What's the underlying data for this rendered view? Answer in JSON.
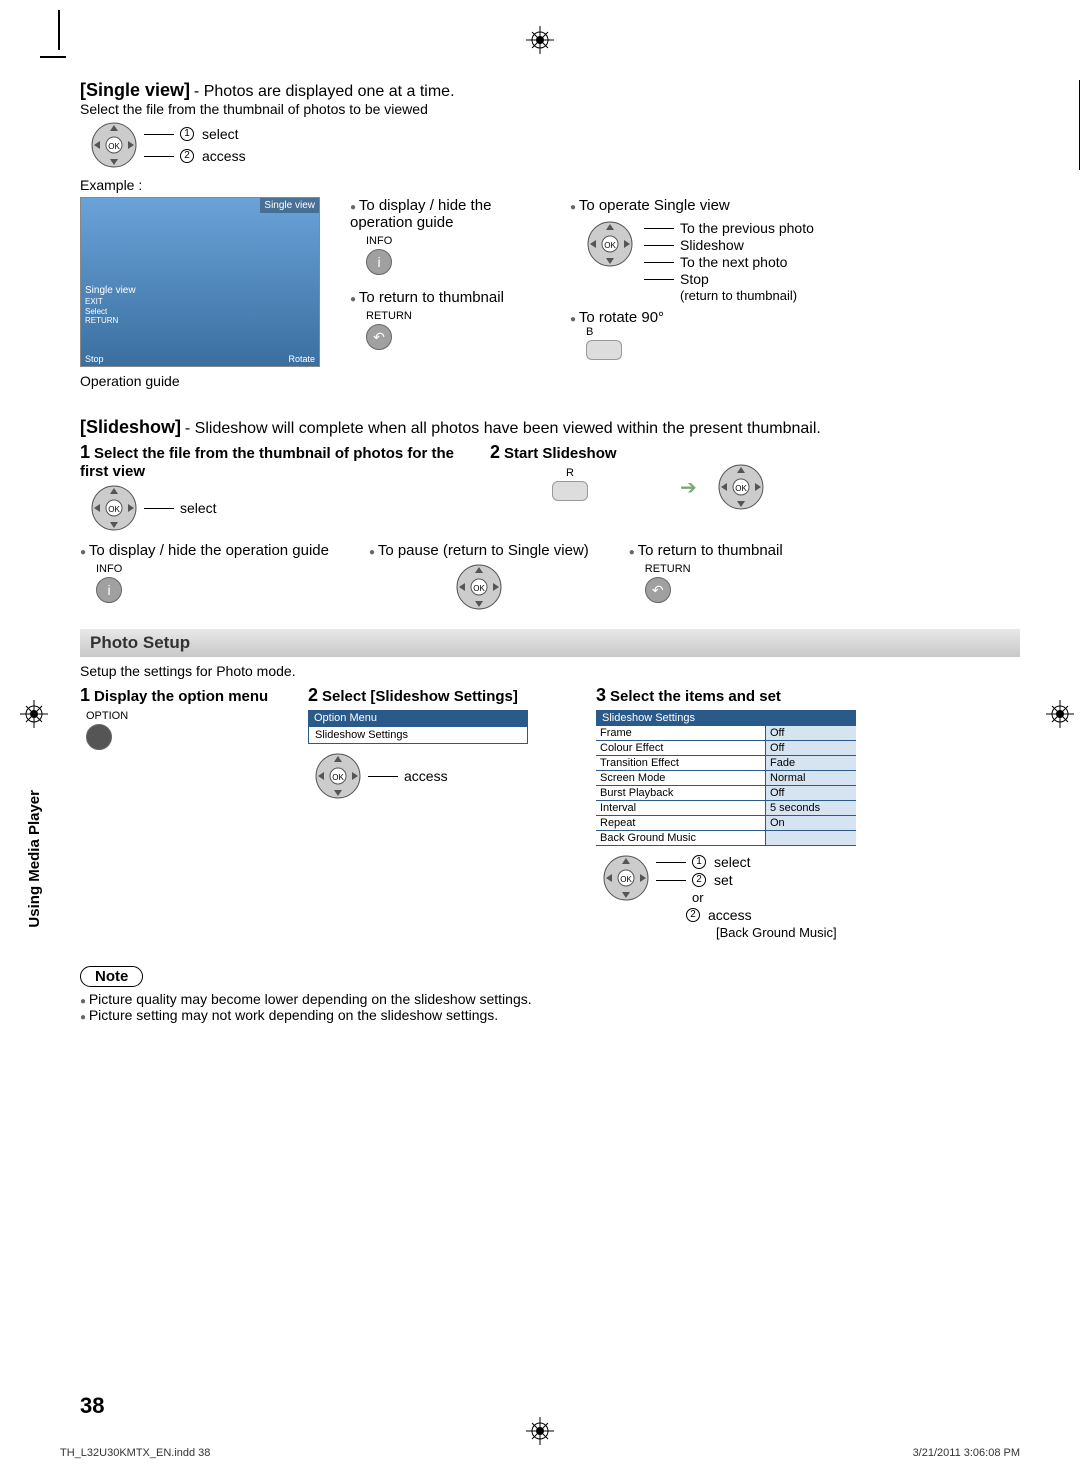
{
  "singleView": {
    "heading": "[Single view]",
    "desc": " - Photos are displayed one at a time.",
    "selectLine": "Select the file from the thumbnail of photos to be viewed",
    "select": "select",
    "access": "access",
    "exampleLabel": "Example :",
    "screenshot": {
      "titlebar": "Single view",
      "midLabel": "Single view",
      "midLines": "EXIT\nSelect\nRETURN",
      "stop": "Stop",
      "rotate": "Rotate"
    },
    "opGuide": "Operation guide",
    "displayHide": "To display / hide the operation guide",
    "info": "INFO",
    "returnThumb": "To return to thumbnail",
    "return": "RETURN",
    "operate": "To operate Single view",
    "prevPhoto": "To the previous photo",
    "slideshow": "Slideshow",
    "nextPhoto": "To the next photo",
    "stop": "Stop",
    "returnThumb2": "(return to thumbnail)",
    "rotate90": "To rotate 90°",
    "b": "B"
  },
  "slideshow": {
    "heading": "[Slideshow]",
    "desc": " - Slideshow will complete when all photos have been viewed within the present thumbnail.",
    "step1": "Select the file from the thumbnail of photos for the first view",
    "step2": "Start Slideshow",
    "select": "select",
    "r": "R",
    "dispHide": "To display / hide the operation guide",
    "pause": "To pause (return to Single view)",
    "returnThumb": "To return to thumbnail",
    "info": "INFO",
    "return": "RETURN"
  },
  "photoSetup": {
    "heading": "Photo Setup",
    "desc": "Setup the settings for Photo mode.",
    "step1": "Display the option menu",
    "step2": "Select [Slideshow Settings]",
    "step3": "Select the items and set",
    "option": "OPTION",
    "access": "access",
    "menuHeader": "Option Menu",
    "menuItem": "Slideshow Settings",
    "settingsHeader": "Slideshow Settings",
    "rows": [
      {
        "k": "Frame",
        "v": "Off"
      },
      {
        "k": "Colour Effect",
        "v": "Off"
      },
      {
        "k": "Transition Effect",
        "v": "Fade"
      },
      {
        "k": "Screen Mode",
        "v": "Normal"
      },
      {
        "k": "Burst Playback",
        "v": "Off"
      },
      {
        "k": "Interval",
        "v": "5 seconds"
      },
      {
        "k": "Repeat",
        "v": "On"
      },
      {
        "k": "Back Ground Music",
        "v": ""
      }
    ],
    "select": "select",
    "set": "set",
    "or": "or",
    "access2": "access",
    "bgm": "[Back Ground Music]"
  },
  "note": {
    "label": "Note",
    "l1": "Picture quality may become lower depending on the slideshow settings.",
    "l2": "Picture setting may not work depending on the slideshow settings."
  },
  "sideTab": "Using Media Player",
  "pageNum": "38",
  "footLeft": "TH_L32U30KMTX_EN.indd   38",
  "footRight": "3/21/2011   3:06:08 PM"
}
